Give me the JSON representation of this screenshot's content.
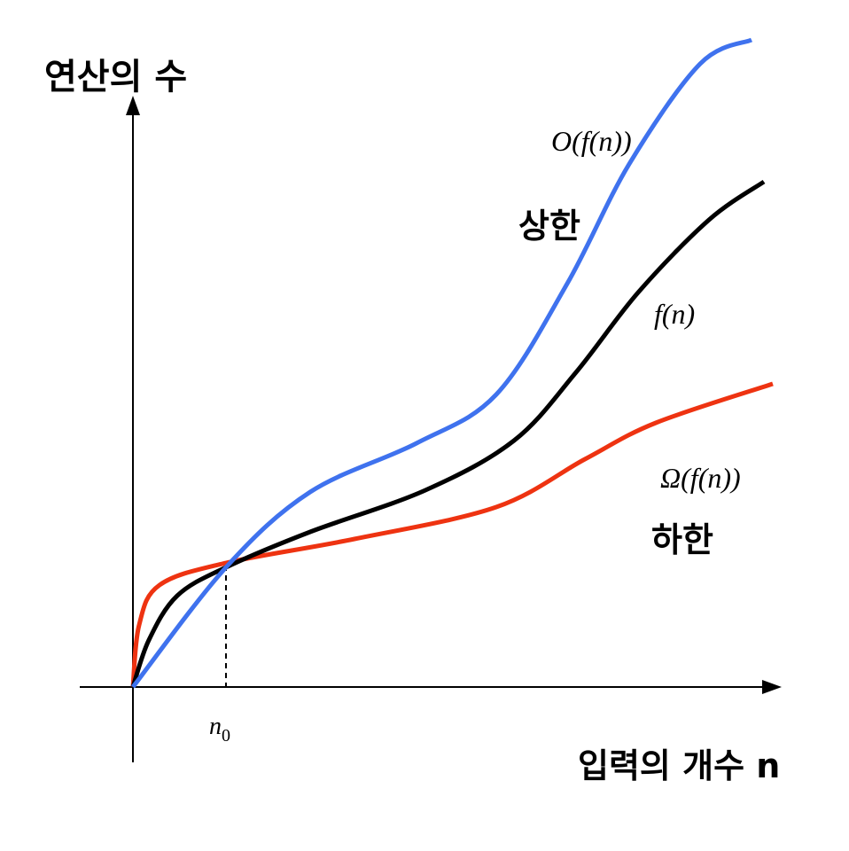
{
  "axes": {
    "y_label": "연산의 수",
    "x_label": "입력의 개수 n"
  },
  "curves": {
    "upper": {
      "label": "O(f(n))",
      "caption": "상한"
    },
    "middle": {
      "label": "f(n)"
    },
    "lower": {
      "label": "Ω(f(n))",
      "caption": "하한"
    }
  },
  "marker": {
    "base": "n",
    "sub": "0"
  }
}
